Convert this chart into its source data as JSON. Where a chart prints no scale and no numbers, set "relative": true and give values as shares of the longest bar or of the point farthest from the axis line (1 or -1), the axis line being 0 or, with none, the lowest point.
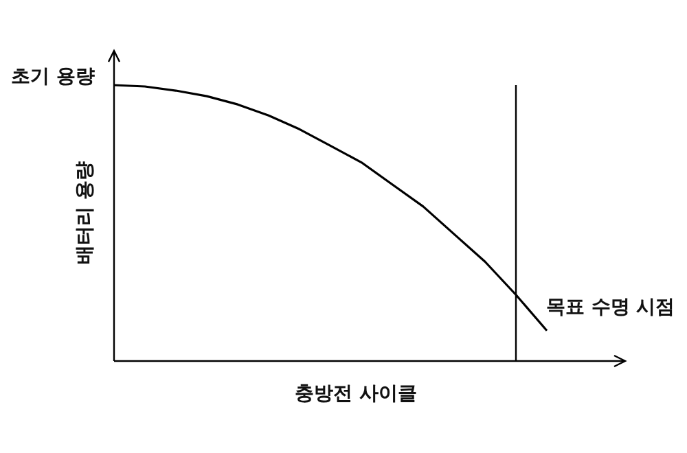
{
  "chart_data": {
    "type": "line",
    "relative": true,
    "xlabel": "충방전 사이클",
    "ylabel": "배터리 용량",
    "annotations": [
      "초기 용량",
      "목표 수명 시점"
    ],
    "categories": [
      null,
      null,
      null,
      null,
      null,
      null,
      null,
      null,
      null,
      null,
      null,
      null,
      null,
      null,
      null
    ],
    "values": [
      1,
      0.995,
      0.98,
      0.96,
      0.93,
      0.89,
      0.84,
      0.78,
      0.72,
      0.64,
      0.56,
      0.46,
      0.36,
      0.24,
      0.11
    ],
    "color": "#000000"
  }
}
